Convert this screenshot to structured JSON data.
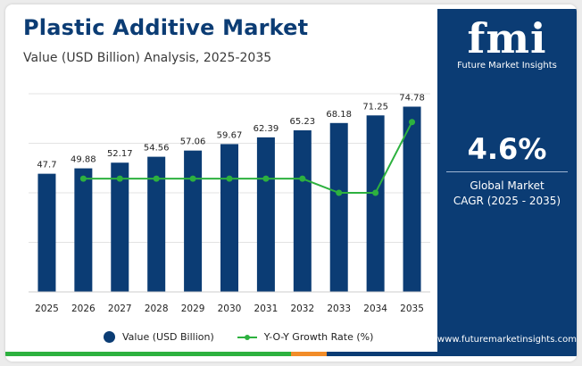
{
  "header": {
    "title": "Plastic Additive Market",
    "subtitle": "Value (USD Billion) Analysis, 2025-2035"
  },
  "legend": {
    "value_label": "Value (USD Billion)",
    "growth_label": "Y-O-Y Growth Rate (%)"
  },
  "sidebar": {
    "logo_mark": "fmi",
    "logo_text": "Future Market Insights",
    "cagr_value": "4.6%",
    "cagr_label_line1": "Global Market",
    "cagr_label_line2": "CAGR (2025 - 2035)",
    "website": "www.futuremarketinsights.com"
  },
  "colors": {
    "bar": "#0b3c74",
    "growth_line": "#2db13f",
    "panel": "#0b3c74",
    "bottom_bar": [
      "#2db13f",
      "#f28c28",
      "#0b3c74"
    ]
  },
  "chart_data": {
    "type": "bar",
    "categories": [
      "2025",
      "2026",
      "2027",
      "2028",
      "2029",
      "2030",
      "2031",
      "2032",
      "2033",
      "2034",
      "2035"
    ],
    "series": [
      {
        "name": "Value (USD Billion)",
        "type": "bar",
        "values": [
          47.7,
          49.88,
          52.17,
          54.56,
          57.06,
          59.67,
          62.39,
          65.23,
          68.18,
          71.25,
          74.78
        ],
        "labels": [
          "47.7",
          "49.88",
          "52.17",
          "54.56",
          "57.06",
          "59.67",
          "62.39",
          "65.23",
          "68.18",
          "71.25",
          "74.78"
        ]
      },
      {
        "name": "Y-O-Y Growth Rate (%)",
        "type": "line",
        "values": [
          null,
          4.6,
          4.6,
          4.6,
          4.6,
          4.6,
          4.6,
          4.6,
          4.5,
          4.5,
          5.0
        ]
      }
    ],
    "ylim": [
      0,
      80
    ],
    "growth_ylim": [
      3.8,
      5.2
    ],
    "grid": true,
    "legend_position": "bottom"
  }
}
